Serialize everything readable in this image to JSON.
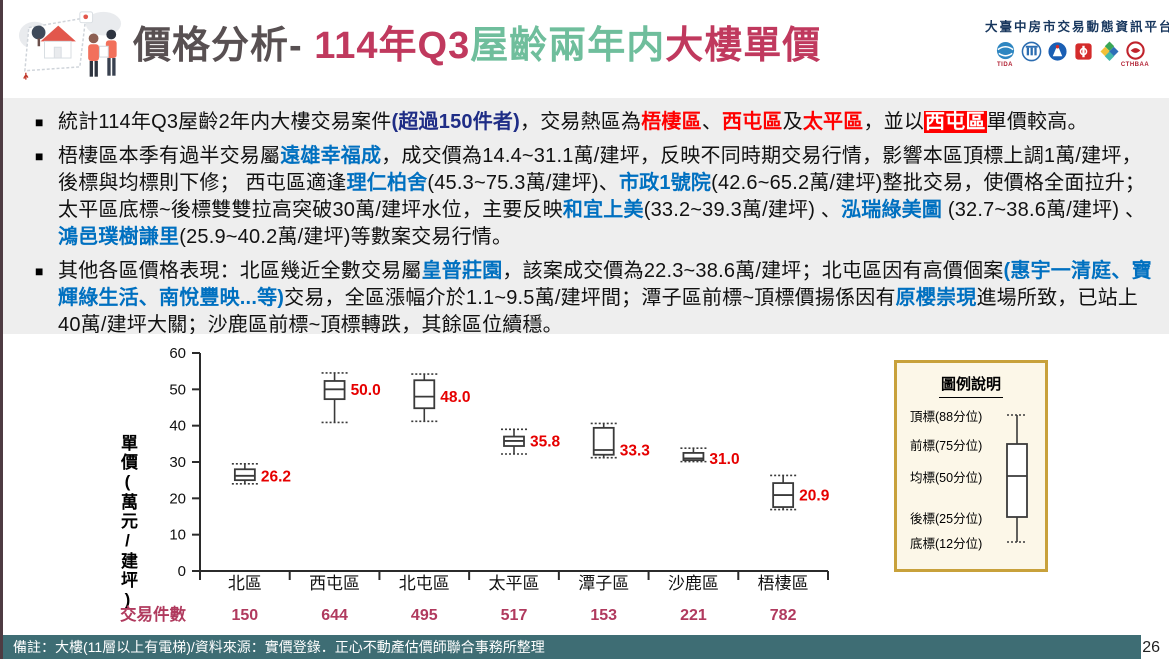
{
  "header": {
    "title_parts": [
      {
        "t": "價格分析- ",
        "s": "dark"
      },
      {
        "t": "114年Q3",
        "s": "red"
      },
      {
        "t": "屋齡兩年内",
        "s": "green"
      },
      {
        "t": "大樓單價",
        "s": "red"
      }
    ],
    "platform_name": "大臺中房市交易動態資訊平台",
    "logo_names": [
      "tida-globe-logo",
      "land-institute-logo",
      "government-badge-logo",
      "red-seal-logo",
      "color-cube-logo",
      "cthbaa-logo"
    ],
    "logo_text_1": "TIDA",
    "logo_text_6": "CTHBAA"
  },
  "summary": {
    "marker": "■",
    "bullets": [
      {
        "segments": [
          {
            "t": "統計114年Q3屋齡2年内大樓交易案件",
            "s": "plain"
          },
          {
            "t": "(超過150件者)",
            "s": "navy"
          },
          {
            "t": "，交易熱區為",
            "s": "plain"
          },
          {
            "t": "梧棲區",
            "s": "red"
          },
          {
            "t": "、",
            "s": "plain"
          },
          {
            "t": "西屯區",
            "s": "red"
          },
          {
            "t": "及",
            "s": "plain"
          },
          {
            "t": "太平區",
            "s": "red"
          },
          {
            "t": "，並以",
            "s": "plain"
          },
          {
            "t": "西屯區",
            "s": "redhl"
          },
          {
            "t": "單價較高。",
            "s": "plain"
          }
        ]
      },
      {
        "segments": [
          {
            "t": "梧棲區本季有過半交易屬",
            "s": "plain"
          },
          {
            "t": "遠雄幸福成",
            "s": "blue"
          },
          {
            "t": "，成交價為14.4~31.1萬/建坪，反映不同時期交易行情，影響本區頂標上調1萬/建坪，後標與均標則下修； 西屯區適逢",
            "s": "plain"
          },
          {
            "t": "理仁柏舍",
            "s": "blue"
          },
          {
            "t": "(45.3~75.3萬/建坪)、",
            "s": "plain"
          },
          {
            "t": "市政1號院",
            "s": "blue"
          },
          {
            "t": "(42.6~65.2萬/建坪)整批交易，使價格全面拉升； 太平區底標~後標雙雙拉高突破30萬/建坪水位，主要反映",
            "s": "plain"
          },
          {
            "t": "和宜上美",
            "s": "blue"
          },
          {
            "t": "(33.2~39.3萬/建坪) 、",
            "s": "plain"
          },
          {
            "t": "泓瑞綠美圖",
            "s": "blue"
          },
          {
            "t": " (32.7~38.6萬/建坪) 、",
            "s": "plain"
          },
          {
            "t": "鴻邑璞樹謙里",
            "s": "blue"
          },
          {
            "t": "(25.9~40.2萬/建坪)等數案交易行情。",
            "s": "plain"
          }
        ]
      },
      {
        "segments": [
          {
            "t": "其他各區價格表現：北區幾近全數交易屬",
            "s": "plain"
          },
          {
            "t": "皇普莊園",
            "s": "blue"
          },
          {
            "t": "，該案成交價為22.3~38.6萬/建坪；北屯區因有高價個案",
            "s": "plain"
          },
          {
            "t": "(惠宇一清庭、寶輝綠生活、南悅豐映...等)",
            "s": "blue"
          },
          {
            "t": "交易，全區漲幅介於1.1~9.5萬/建坪間；潭子區前標~頂標價揚係因有",
            "s": "plain"
          },
          {
            "t": "原櫻崇現",
            "s": "blue"
          },
          {
            "t": "進場所致，已站上40萬/建坪大關；沙鹿區前標~頂標轉跌，其餘區位續穩。",
            "s": "plain"
          }
        ]
      }
    ]
  },
  "chart_data": {
    "type": "boxplot",
    "title": "",
    "ylabel": "單價(萬元/建坪)",
    "ylim": [
      0,
      60
    ],
    "yticks": [
      0,
      10,
      20,
      30,
      40,
      50,
      60
    ],
    "grid": false,
    "counts_label": "交易件數",
    "categories": [
      "北區",
      "西屯區",
      "北屯區",
      "太平區",
      "潭子區",
      "沙鹿區",
      "梧棲區"
    ],
    "counts": [
      150,
      644,
      495,
      517,
      153,
      221,
      782
    ],
    "percentiles_meaning": {
      "top": "頂標(88分位)",
      "p75": "前標(75分位)",
      "median": "均標(50分位)",
      "p25": "後標(25分位)",
      "bottom": "底標(12分位)"
    },
    "series": [
      {
        "name": "北區",
        "top": 29.5,
        "p75": 28.0,
        "median": 26.2,
        "p25": 25.0,
        "bottom": 24.0,
        "label": "26.2"
      },
      {
        "name": "西屯區",
        "top": 54.5,
        "p75": 52.3,
        "median": 50.0,
        "p25": 47.3,
        "bottom": 40.9,
        "label": "50.0"
      },
      {
        "name": "北屯區",
        "top": 54.2,
        "p75": 52.5,
        "median": 48.0,
        "p25": 44.8,
        "bottom": 41.2,
        "label": "48.0"
      },
      {
        "name": "太平區",
        "top": 39.0,
        "p75": 37.0,
        "median": 35.8,
        "p25": 34.4,
        "bottom": 32.2,
        "label": "35.8"
      },
      {
        "name": "潭子區",
        "top": 40.6,
        "p75": 39.4,
        "median": 33.3,
        "p25": 32.0,
        "bottom": 31.2,
        "label": "33.3"
      },
      {
        "name": "沙鹿區",
        "top": 33.8,
        "p75": 32.5,
        "median": 31.0,
        "p25": 30.5,
        "bottom": 30.1,
        "label": "31.0"
      },
      {
        "name": "梧棲區",
        "top": 26.3,
        "p75": 24.2,
        "median": 20.9,
        "p25": 17.6,
        "bottom": 16.9,
        "label": "20.9"
      }
    ],
    "colors": {
      "box_stroke": "#3a3a3a",
      "value_label": "#e60000",
      "count": "#b03a5e"
    }
  },
  "legend": {
    "title": "圖例說明",
    "items": [
      "頂標(88分位)",
      "前標(75分位)",
      "均標(50分位)",
      "後標(25分位)",
      "底標(12分位)"
    ]
  },
  "footer": {
    "note": "備註：大樓(11層以上有電梯)/資料來源：實價登錄．正心不動產估價師聯合事務所整理",
    "page": "26"
  }
}
